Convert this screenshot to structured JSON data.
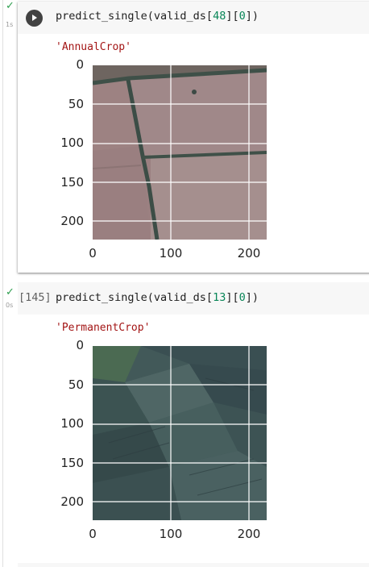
{
  "cells": [
    {
      "status_check": "✓",
      "exec_time": "1s",
      "execution_count": "",
      "code": {
        "fn": "predict_single(valid_ds[",
        "idx": "48",
        "mid": "][",
        "sub": "0",
        "end": "])"
      },
      "output_text": "'AnnualCrop'",
      "plot": {
        "y_ticks": [
          "0",
          "50",
          "100",
          "150",
          "200"
        ],
        "x_ticks": [
          "0",
          "100",
          "200"
        ],
        "image": "satellite-annual-crop"
      }
    },
    {
      "status_check": "✓",
      "exec_time": "0s",
      "execution_count": "[145]",
      "code": {
        "fn": "predict_single(valid_ds[",
        "idx": "13",
        "mid": "][",
        "sub": "0",
        "end": "])"
      },
      "output_text": "'PermanentCrop'",
      "plot": {
        "y_ticks": [
          "0",
          "50",
          "100",
          "150",
          "200"
        ],
        "x_ticks": [
          "0",
          "100",
          "200"
        ],
        "image": "satellite-permanent-crop"
      }
    }
  ],
  "colors": {
    "check": "#2e9e4f",
    "number_literal": "#098658",
    "string_literal": "#a31515",
    "annual_crop_base": "#9a7f80",
    "permanent_crop_base": "#3e5656"
  }
}
